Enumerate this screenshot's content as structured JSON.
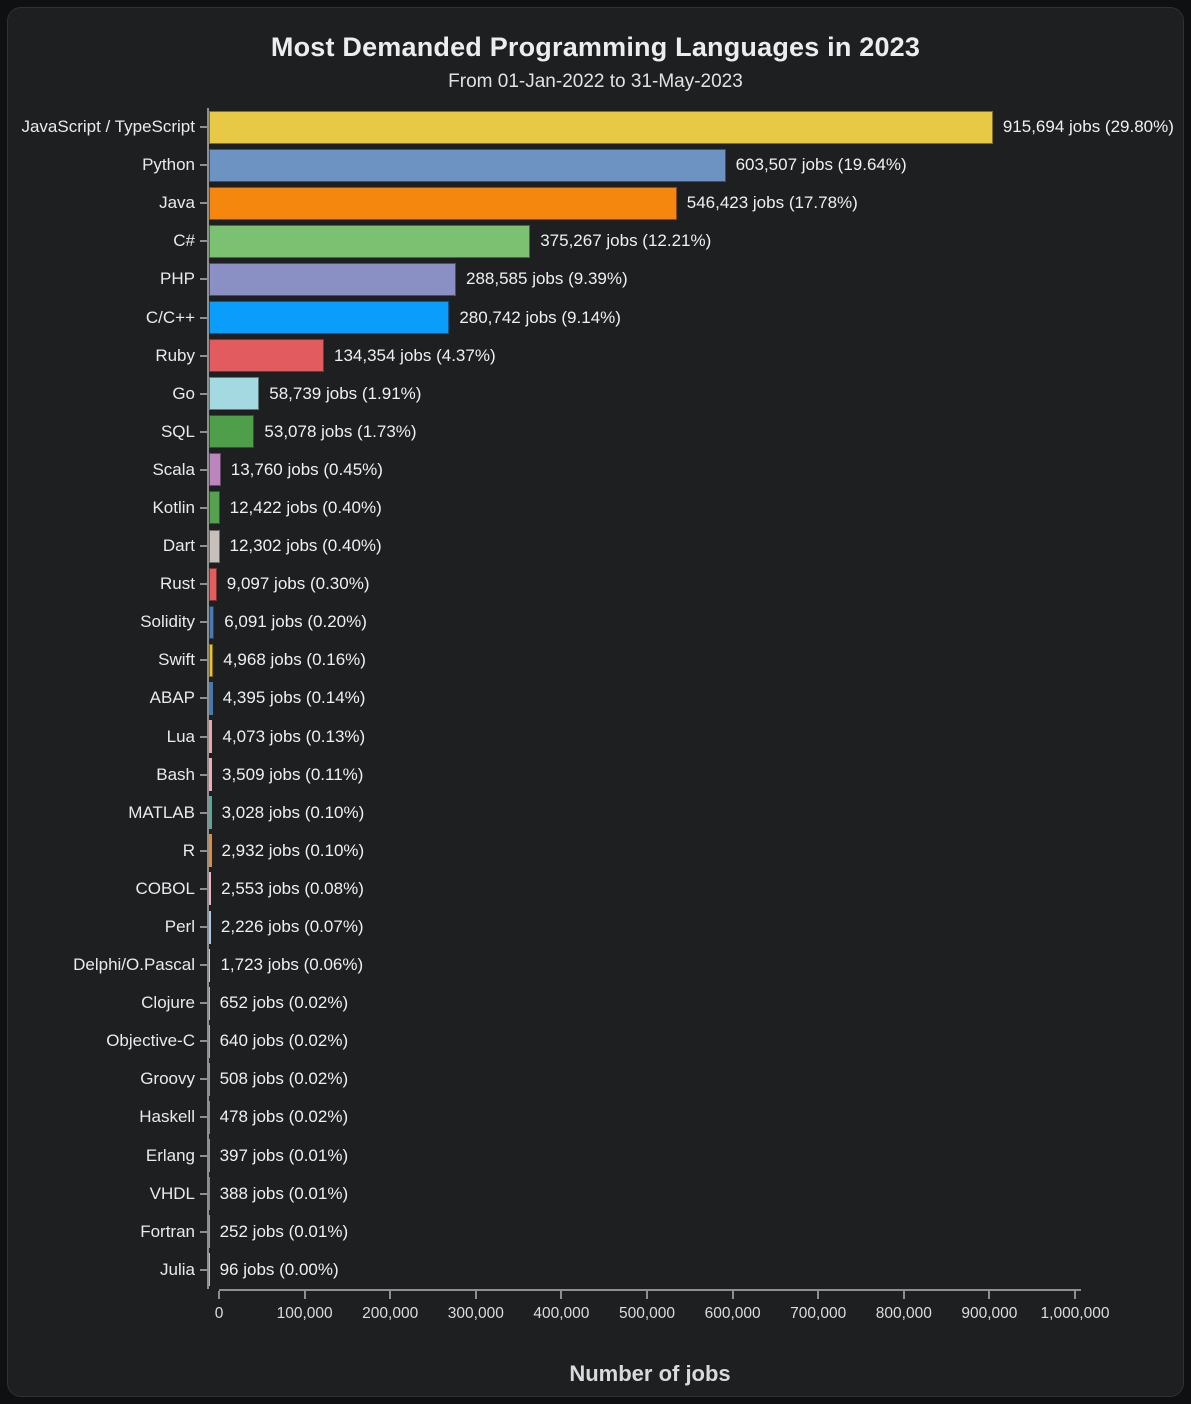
{
  "chart_data": {
    "type": "bar",
    "orientation": "horizontal",
    "title": "Most Demanded Programming Languages in 2023",
    "subtitle": "From 01-Jan-2022 to 31-May-2023",
    "xlabel": "Number of jobs",
    "xlim": [
      0,
      1000000
    ],
    "grid": false,
    "legend": false,
    "x_ticks": [
      0,
      100000,
      200000,
      300000,
      400000,
      500000,
      600000,
      700000,
      800000,
      900000,
      1000000
    ],
    "x_tick_labels": [
      "0",
      "100,000",
      "200,000",
      "300,000",
      "400,000",
      "500,000",
      "600,000",
      "700,000",
      "800,000",
      "900,000",
      "1,000,000"
    ],
    "categories": [
      "JavaScript / TypeScript",
      "Python",
      "Java",
      "C#",
      "PHP",
      "C/C++",
      "Ruby",
      "Go",
      "SQL",
      "Scala",
      "Kotlin",
      "Dart",
      "Rust",
      "Solidity",
      "Swift",
      "ABAP",
      "Lua",
      "Bash",
      "MATLAB",
      "R",
      "COBOL",
      "Perl",
      "Delphi/O.Pascal",
      "Clojure",
      "Objective-C",
      "Groovy",
      "Haskell",
      "Erlang",
      "VHDL",
      "Fortran",
      "Julia"
    ],
    "values": [
      915694,
      603507,
      546423,
      375267,
      288585,
      280742,
      134354,
      58739,
      53078,
      13760,
      12422,
      12302,
      9097,
      6091,
      4968,
      4395,
      4073,
      3509,
      3028,
      2932,
      2553,
      2226,
      1723,
      652,
      640,
      508,
      478,
      397,
      388,
      252,
      96
    ],
    "bar_labels": [
      "915,694 jobs (29.80%)",
      "603,507 jobs (19.64%)",
      "546,423 jobs (17.78%)",
      "375,267 jobs (12.21%)",
      "288,585 jobs (9.39%)",
      "280,742 jobs (9.14%)",
      "134,354 jobs (4.37%)",
      "58,739 jobs (1.91%)",
      "53,078 jobs (1.73%)",
      "13,760 jobs (0.45%)",
      "12,422 jobs (0.40%)",
      "12,302 jobs (0.40%)",
      "9,097 jobs (0.30%)",
      "6,091 jobs (0.20%)",
      "4,968 jobs (0.16%)",
      "4,395 jobs (0.14%)",
      "4,073 jobs (0.13%)",
      "3,509 jobs (0.11%)",
      "3,028 jobs (0.10%)",
      "2,932 jobs (0.10%)",
      "2,553 jobs (0.08%)",
      "2,226 jobs (0.07%)",
      "1,723 jobs (0.06%)",
      "652 jobs (0.02%)",
      "640 jobs (0.02%)",
      "508 jobs (0.02%)",
      "478 jobs (0.02%)",
      "397 jobs (0.01%)",
      "388 jobs (0.01%)",
      "252 jobs (0.01%)",
      "96 jobs (0.00%)"
    ],
    "colors": [
      "#e8c945",
      "#6d93c3",
      "#f5870f",
      "#7cc171",
      "#8a90c4",
      "#0a9dfc",
      "#e25b5e",
      "#a5d9e2",
      "#4f9f4a",
      "#bb85be",
      "#55a24e",
      "#c7bfba",
      "#e45d5d",
      "#4a7ab2",
      "#f0c41f",
      "#4878ac",
      "#f2a3a8",
      "#f5aab4",
      "#56a8a2",
      "#e78b33",
      "#f0b4c4",
      "#a9c8e6",
      "#c9c9c9",
      "#b5b5b5",
      "#8ab4d8",
      "#c98c44",
      "#9a79b5",
      "#6aa6a0",
      "#c96a6a",
      "#7b9fc9",
      "#d0c060"
    ],
    "axis_color": "#8f8f8f",
    "background": "#1e1f21",
    "text_color": "#eaeaea"
  }
}
